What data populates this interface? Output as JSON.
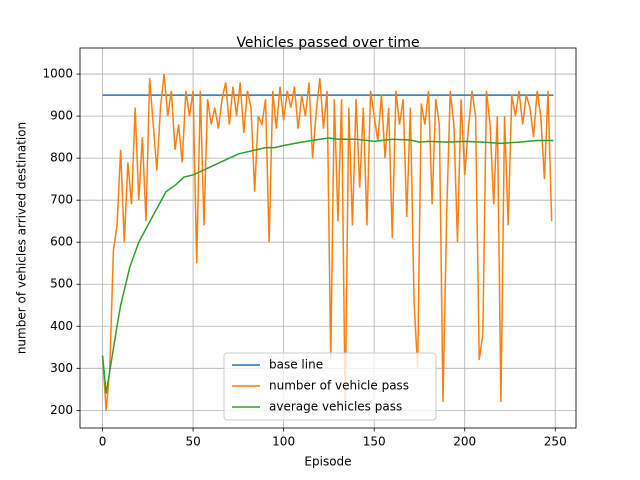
{
  "chart_data": {
    "type": "line",
    "title": "Vehicles passed over time",
    "xlabel": "Episode",
    "ylabel": "number of vehicles arrived destination",
    "xlim": [
      -12.45,
      261.45
    ],
    "ylim": [
      158,
      1062
    ],
    "xticks": [
      0,
      50,
      100,
      150,
      200,
      250
    ],
    "yticks": [
      200,
      300,
      400,
      500,
      600,
      700,
      800,
      900,
      1000
    ],
    "grid": true,
    "legend": "lower center",
    "series": [
      {
        "name": "base line",
        "color": "#1f77b4",
        "x": [
          0,
          249
        ],
        "values": [
          950,
          950
        ]
      },
      {
        "name": "number of vehicle pass",
        "color": "#ff7f0e",
        "x": [
          0,
          2,
          4,
          6,
          8,
          10,
          12,
          14,
          16,
          18,
          20,
          22,
          24,
          26,
          28,
          30,
          32,
          34,
          36,
          38,
          40,
          42,
          44,
          46,
          48,
          50,
          52,
          54,
          56,
          58,
          60,
          62,
          64,
          66,
          68,
          70,
          72,
          74,
          76,
          78,
          80,
          82,
          84,
          86,
          88,
          90,
          92,
          94,
          96,
          98,
          100,
          102,
          104,
          106,
          108,
          110,
          112,
          114,
          116,
          118,
          120,
          122,
          124,
          126,
          128,
          130,
          132,
          134,
          136,
          138,
          140,
          142,
          144,
          146,
          148,
          150,
          152,
          154,
          156,
          158,
          160,
          162,
          164,
          166,
          168,
          170,
          172,
          174,
          176,
          178,
          180,
          182,
          184,
          186,
          188,
          190,
          192,
          194,
          196,
          198,
          200,
          202,
          204,
          206,
          208,
          210,
          212,
          214,
          216,
          218,
          220,
          222,
          224,
          226,
          228,
          230,
          232,
          234,
          236,
          238,
          240,
          242,
          244,
          246,
          248
        ],
        "values": [
          330,
          200,
          300,
          580,
          640,
          820,
          600,
          790,
          690,
          920,
          700,
          850,
          650,
          990,
          880,
          770,
          920,
          1000,
          900,
          960,
          820,
          880,
          790,
          960,
          900,
          960,
          550,
          960,
          640,
          940,
          880,
          920,
          870,
          940,
          980,
          880,
          970,
          900,
          980,
          860,
          960,
          920,
          720,
          900,
          880,
          940,
          600,
          960,
          870,
          970,
          890,
          960,
          920,
          970,
          870,
          950,
          900,
          980,
          800,
          910,
          990,
          870,
          960,
          320,
          940,
          650,
          940,
          200,
          920,
          640,
          940,
          730,
          920,
          640,
          960,
          900,
          840,
          950,
          800,
          920,
          610,
          960,
          880,
          940,
          660,
          920,
          460,
          300,
          930,
          880,
          960,
          690,
          940,
          880,
          220,
          660,
          960,
          880,
          600,
          940,
          760,
          870,
          960,
          900,
          320,
          380,
          960,
          880,
          690,
          900,
          220,
          900,
          640,
          950,
          900,
          960,
          880,
          950,
          920,
          850,
          960,
          900,
          750,
          960,
          650
        ]
      },
      {
        "name": "average vehicles pass",
        "color": "#2ca02c",
        "x": [
          0,
          2,
          5,
          8,
          10,
          15,
          20,
          25,
          30,
          35,
          40,
          45,
          50,
          55,
          60,
          65,
          70,
          75,
          80,
          85,
          90,
          95,
          100,
          110,
          120,
          125,
          130,
          140,
          150,
          160,
          170,
          175,
          180,
          190,
          200,
          210,
          220,
          230,
          240,
          249
        ],
        "values": [
          330,
          240,
          320,
          400,
          450,
          540,
          600,
          640,
          680,
          720,
          735,
          755,
          760,
          770,
          780,
          790,
          800,
          810,
          815,
          820,
          825,
          825,
          830,
          838,
          845,
          848,
          845,
          845,
          840,
          845,
          843,
          838,
          840,
          838,
          840,
          838,
          835,
          838,
          842,
          842
        ]
      }
    ]
  }
}
